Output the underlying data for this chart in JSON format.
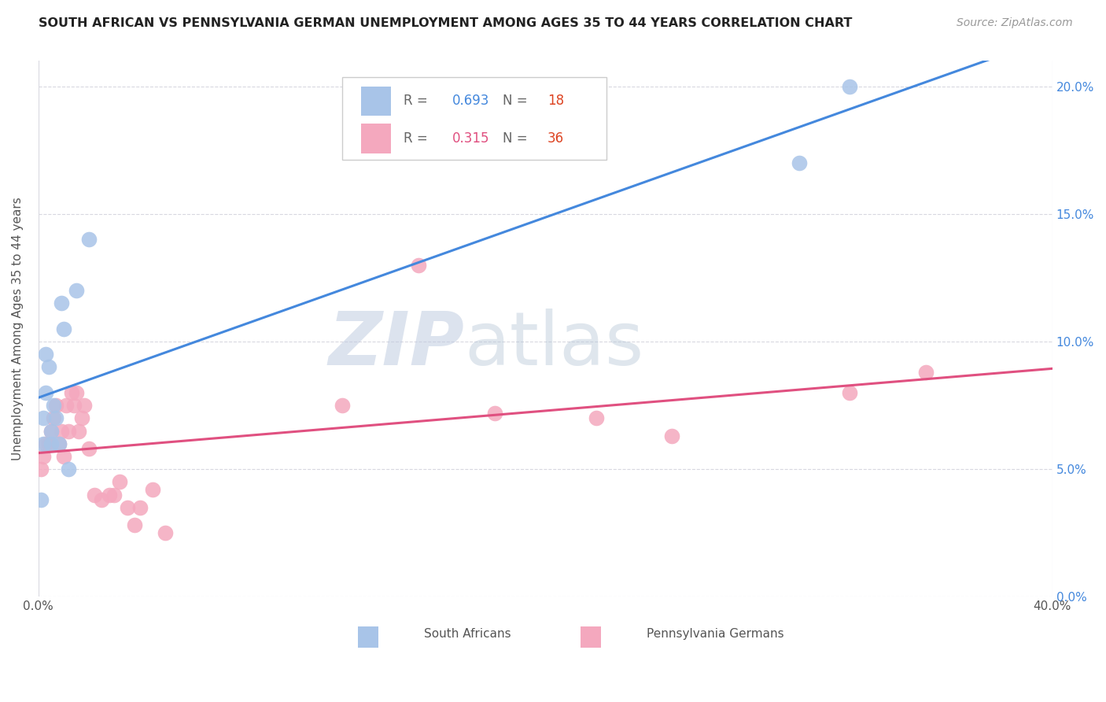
{
  "title": "SOUTH AFRICAN VS PENNSYLVANIA GERMAN UNEMPLOYMENT AMONG AGES 35 TO 44 YEARS CORRELATION CHART",
  "source": "Source: ZipAtlas.com",
  "ylabel": "Unemployment Among Ages 35 to 44 years",
  "xlim": [
    0.0,
    0.4
  ],
  "ylim": [
    0.0,
    0.21
  ],
  "xticks": [
    0.0,
    0.4
  ],
  "xticklabels": [
    "0.0%",
    "40.0%"
  ],
  "yticks": [
    0.0,
    0.05,
    0.1,
    0.15,
    0.2
  ],
  "yticklabels_right": [
    "0.0%",
    "5.0%",
    "10.0%",
    "15.0%",
    "20.0%"
  ],
  "sa_color": "#a8c4e8",
  "pg_color": "#f4a8be",
  "sa_line_color": "#4488dd",
  "pg_line_color": "#e05080",
  "sa_R": 0.693,
  "sa_N": 18,
  "pg_R": 0.315,
  "pg_N": 36,
  "sa_x": [
    0.001,
    0.002,
    0.002,
    0.003,
    0.003,
    0.004,
    0.005,
    0.005,
    0.006,
    0.007,
    0.008,
    0.009,
    0.01,
    0.012,
    0.015,
    0.02,
    0.3,
    0.32
  ],
  "sa_y": [
    0.038,
    0.06,
    0.07,
    0.08,
    0.095,
    0.09,
    0.06,
    0.065,
    0.075,
    0.07,
    0.06,
    0.115,
    0.105,
    0.05,
    0.12,
    0.14,
    0.17,
    0.2
  ],
  "pg_x": [
    0.001,
    0.002,
    0.003,
    0.004,
    0.005,
    0.006,
    0.007,
    0.008,
    0.009,
    0.01,
    0.011,
    0.012,
    0.013,
    0.014,
    0.015,
    0.016,
    0.017,
    0.018,
    0.02,
    0.022,
    0.025,
    0.028,
    0.03,
    0.032,
    0.035,
    0.038,
    0.04,
    0.045,
    0.05,
    0.12,
    0.15,
    0.18,
    0.22,
    0.25,
    0.32,
    0.35
  ],
  "pg_y": [
    0.05,
    0.055,
    0.06,
    0.06,
    0.065,
    0.07,
    0.075,
    0.06,
    0.065,
    0.055,
    0.075,
    0.065,
    0.08,
    0.075,
    0.08,
    0.065,
    0.07,
    0.075,
    0.058,
    0.04,
    0.038,
    0.04,
    0.04,
    0.045,
    0.035,
    0.028,
    0.035,
    0.042,
    0.025,
    0.075,
    0.13,
    0.072,
    0.07,
    0.063,
    0.08,
    0.088
  ],
  "background_color": "#ffffff",
  "grid_color": "#d8d8e0",
  "watermark_zip": "ZIP",
  "watermark_atlas": "atlas",
  "watermark_color_zip": "#c0cce0",
  "watermark_color_atlas": "#b8c8d8"
}
